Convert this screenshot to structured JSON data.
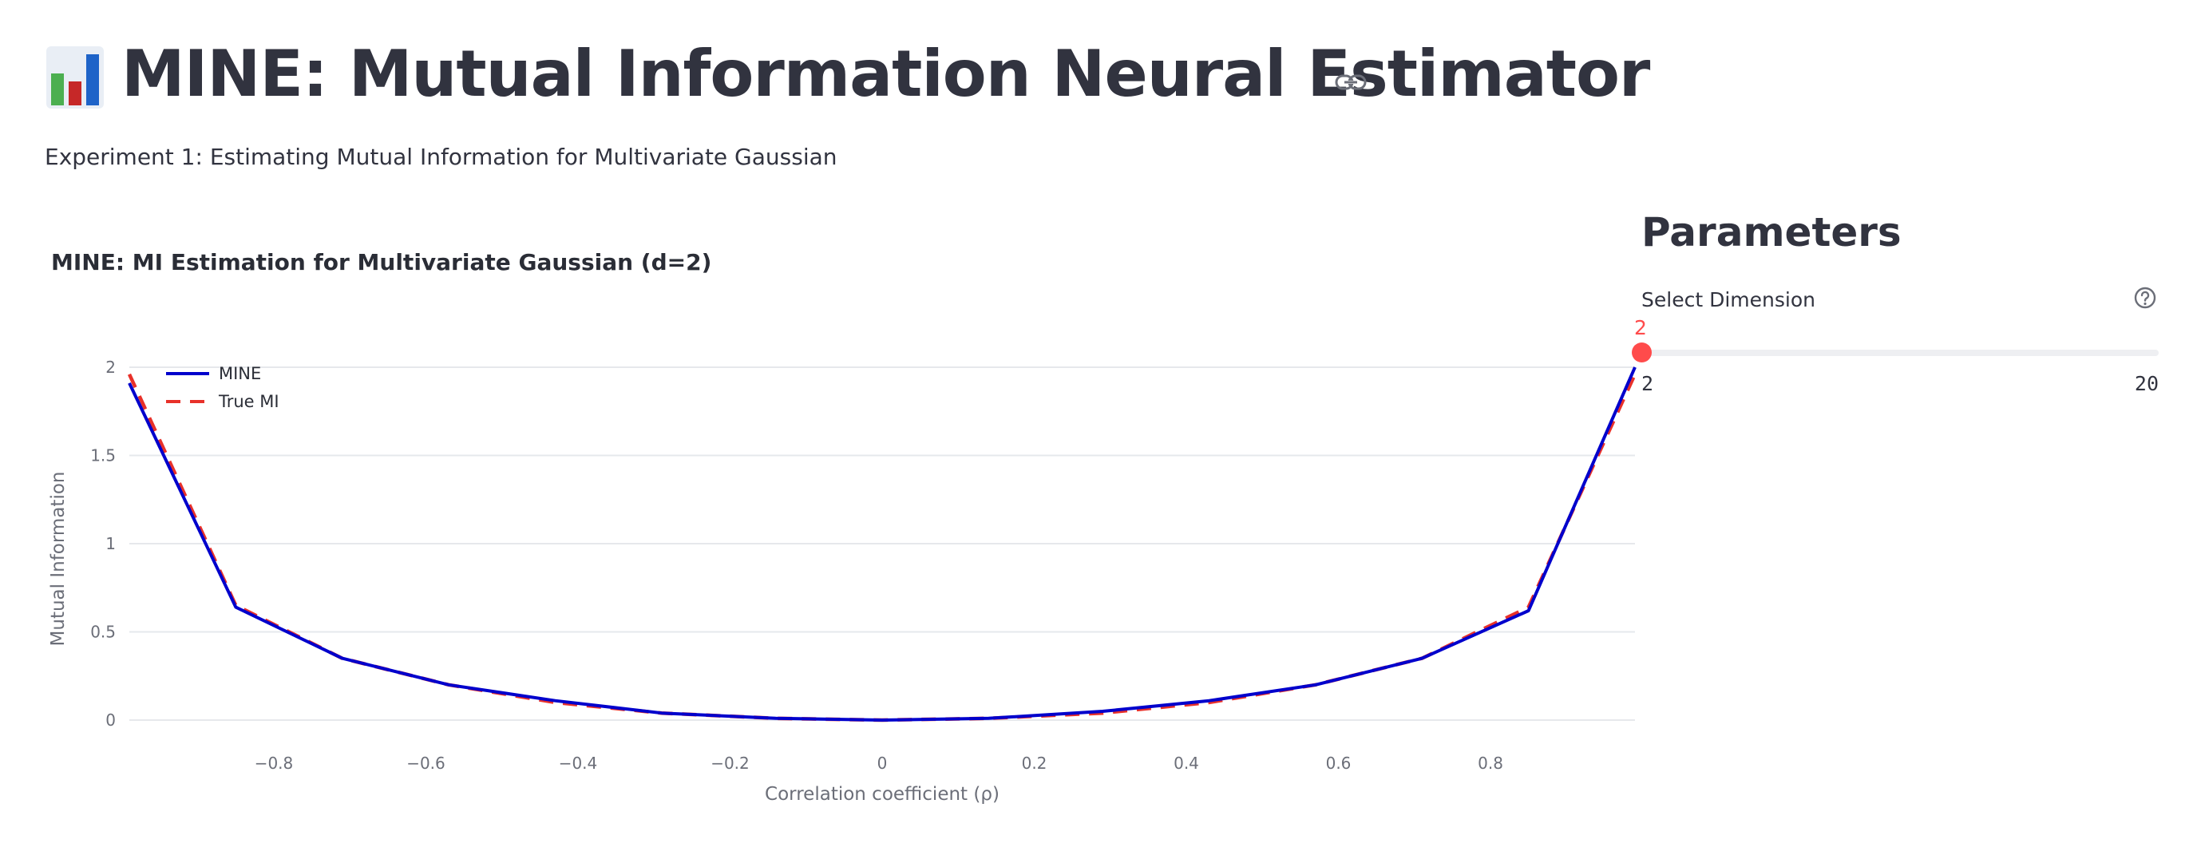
{
  "header": {
    "icon": "bar-chart-icon",
    "title": "MINE: Mutual Information Neural Estimator",
    "anchor_icon": "link-icon"
  },
  "subtitle": "Experiment 1: Estimating Mutual Information for Multivariate Gaussian",
  "sidebar": {
    "heading": "Parameters",
    "slider": {
      "label": "Select Dimension",
      "help_icon": "question-circle-icon",
      "value": 2,
      "value_text": "2",
      "min": 2,
      "max": 20,
      "min_text": "2",
      "max_text": "20",
      "color": "#ff4b4b"
    }
  },
  "chart_data": {
    "type": "line",
    "title": "MINE: MI Estimation for Multivariate Gaussian (d=2)",
    "xlabel": "Correlation coefficient (ρ)",
    "ylabel": "Mutual Information",
    "xlim": [
      -0.99,
      0.99
    ],
    "ylim": [
      0,
      2
    ],
    "x_ticks": [
      -0.8,
      -0.6,
      -0.4,
      -0.2,
      0,
      0.2,
      0.4,
      0.6,
      0.8
    ],
    "x_tick_labels": [
      "−0.8",
      "−0.6",
      "−0.4",
      "−0.2",
      "0",
      "0.2",
      "0.4",
      "0.6",
      "0.8"
    ],
    "y_ticks": [
      0,
      0.5,
      1,
      1.5,
      2
    ],
    "y_tick_labels": [
      "0",
      "0.5",
      "1",
      "1.5",
      "2"
    ],
    "grid": true,
    "legend": "top-left",
    "x": [
      -0.99,
      -0.85,
      -0.71,
      -0.57,
      -0.43,
      -0.29,
      -0.14,
      0,
      0.14,
      0.29,
      0.43,
      0.57,
      0.71,
      0.85,
      0.99
    ],
    "series": [
      {
        "name": "MINE",
        "color": "#0000cc",
        "dash": "solid",
        "values": [
          1.91,
          0.64,
          0.35,
          0.2,
          0.11,
          0.04,
          0.01,
          0.0,
          0.01,
          0.05,
          0.11,
          0.2,
          0.35,
          0.62,
          2.0
        ]
      },
      {
        "name": "True MI",
        "color": "#e8312a",
        "dash": "dashed",
        "values": [
          1.96,
          0.65,
          0.35,
          0.2,
          0.1,
          0.04,
          0.01,
          0.0,
          0.01,
          0.04,
          0.1,
          0.2,
          0.35,
          0.64,
          1.96
        ]
      }
    ]
  }
}
